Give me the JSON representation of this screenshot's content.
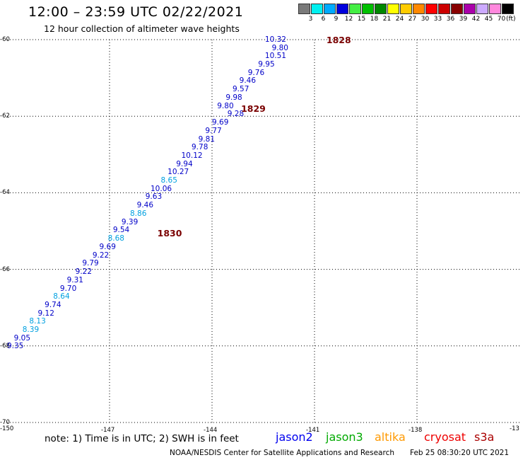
{
  "header": {
    "title": "12:00 – 23:59 UTC 02/22/2021",
    "subtitle": "12 hour collection of altimeter wave heights"
  },
  "legend": {
    "unit": "(ft)",
    "bins": [
      {
        "label": "3",
        "color": "#7a7a7a"
      },
      {
        "label": "6",
        "color": "#00f0f0"
      },
      {
        "label": "9",
        "color": "#00aaff"
      },
      {
        "label": "12",
        "color": "#0000dd"
      },
      {
        "label": "15",
        "color": "#44ee44"
      },
      {
        "label": "18",
        "color": "#00c000"
      },
      {
        "label": "21",
        "color": "#008800"
      },
      {
        "label": "24",
        "color": "#ffff00"
      },
      {
        "label": "27",
        "color": "#ffcc00"
      },
      {
        "label": "30",
        "color": "#ff8800"
      },
      {
        "label": "33",
        "color": "#ff0000"
      },
      {
        "label": "36",
        "color": "#cc0000"
      },
      {
        "label": "39",
        "color": "#880000"
      },
      {
        "label": "42",
        "color": "#aa00aa"
      },
      {
        "label": "45",
        "color": "#ccaaff"
      },
      {
        "label": "70",
        "color": "#ff88dd"
      },
      {
        "label": "",
        "color": "#000000"
      }
    ]
  },
  "map": {
    "lat_ticks": [
      "-60",
      "-62",
      "-64",
      "-66",
      "-68",
      "-70"
    ],
    "lon_ticks": [
      "-150",
      "-147",
      "-144",
      "-141",
      "-138",
      "-13"
    ],
    "lat_range": [
      -70,
      -60
    ],
    "lon_range": [
      -150,
      -135
    ]
  },
  "passes": [
    {
      "label": "1828",
      "lon": -140.65,
      "lat": -60.0
    },
    {
      "label": "1829",
      "lon": -143.15,
      "lat": -61.8
    },
    {
      "label": "1830",
      "lon": -145.6,
      "lat": -65.05
    }
  ],
  "measurements": [
    {
      "value": "10.32",
      "lon": -142.45,
      "lat": -60.0,
      "color": "#0000c8"
    },
    {
      "value": "9.80",
      "lon": -142.25,
      "lat": -60.22,
      "color": "#0000c8"
    },
    {
      "value": "10.51",
      "lon": -142.45,
      "lat": -60.43,
      "color": "#0000c8"
    },
    {
      "value": "9.95",
      "lon": -142.65,
      "lat": -60.65,
      "color": "#0000c8"
    },
    {
      "value": "9.76",
      "lon": -142.95,
      "lat": -60.86,
      "color": "#0000c8"
    },
    {
      "value": "9.46",
      "lon": -143.2,
      "lat": -61.08,
      "color": "#0000c8"
    },
    {
      "value": "9.57",
      "lon": -143.4,
      "lat": -61.3,
      "color": "#0000c8"
    },
    {
      "value": "9.98",
      "lon": -143.6,
      "lat": -61.51,
      "color": "#0000c8"
    },
    {
      "value": "9.80",
      "lon": -143.85,
      "lat": -61.73,
      "color": "#0000c8"
    },
    {
      "value": "9.28",
      "lon": -143.55,
      "lat": -61.95,
      "color": "#0000c8"
    },
    {
      "value": "9.69",
      "lon": -144.0,
      "lat": -62.16,
      "color": "#0000c8"
    },
    {
      "value": "9.77",
      "lon": -144.2,
      "lat": -62.38,
      "color": "#0000c8"
    },
    {
      "value": "9.81",
      "lon": -144.4,
      "lat": -62.6,
      "color": "#0000c8"
    },
    {
      "value": "9.78",
      "lon": -144.6,
      "lat": -62.81,
      "color": "#0000c8"
    },
    {
      "value": "10.12",
      "lon": -144.9,
      "lat": -63.03,
      "color": "#0000c8"
    },
    {
      "value": "9.94",
      "lon": -145.05,
      "lat": -63.25,
      "color": "#0000c8"
    },
    {
      "value": "10.27",
      "lon": -145.3,
      "lat": -63.46,
      "color": "#0000c8"
    },
    {
      "value": "8.65",
      "lon": -145.5,
      "lat": -63.68,
      "color": "#00a0e0"
    },
    {
      "value": "10.06",
      "lon": -145.8,
      "lat": -63.9,
      "color": "#0000c8"
    },
    {
      "value": "9.63",
      "lon": -145.95,
      "lat": -64.11,
      "color": "#0000c8"
    },
    {
      "value": "9.46",
      "lon": -146.2,
      "lat": -64.33,
      "color": "#0000c8"
    },
    {
      "value": "8.86",
      "lon": -146.4,
      "lat": -64.55,
      "color": "#00a0e0"
    },
    {
      "value": "9.39",
      "lon": -146.65,
      "lat": -64.76,
      "color": "#0000c8"
    },
    {
      "value": "9.54",
      "lon": -146.9,
      "lat": -64.98,
      "color": "#0000c8"
    },
    {
      "value": "8.68",
      "lon": -147.05,
      "lat": -65.2,
      "color": "#00a0e0"
    },
    {
      "value": "9.69",
      "lon": -147.3,
      "lat": -65.41,
      "color": "#0000c8"
    },
    {
      "value": "9.22",
      "lon": -147.5,
      "lat": -65.63,
      "color": "#0000c8"
    },
    {
      "value": "9.79",
      "lon": -147.8,
      "lat": -65.85,
      "color": "#0000c8"
    },
    {
      "value": "9.22",
      "lon": -148.0,
      "lat": -66.06,
      "color": "#0000c8"
    },
    {
      "value": "9.31",
      "lon": -148.25,
      "lat": -66.28,
      "color": "#0000c8"
    },
    {
      "value": "9.70",
      "lon": -148.45,
      "lat": -66.5,
      "color": "#0000c8"
    },
    {
      "value": "8.64",
      "lon": -148.65,
      "lat": -66.71,
      "color": "#00a0e0"
    },
    {
      "value": "9.74",
      "lon": -148.9,
      "lat": -66.93,
      "color": "#0000c8"
    },
    {
      "value": "9.12",
      "lon": -149.1,
      "lat": -67.15,
      "color": "#0000c8"
    },
    {
      "value": "8.13",
      "lon": -149.35,
      "lat": -67.36,
      "color": "#00a0e0"
    },
    {
      "value": "8.39",
      "lon": -149.55,
      "lat": -67.58,
      "color": "#00a0e0"
    },
    {
      "value": "9.05",
      "lon": -149.8,
      "lat": -67.8,
      "color": "#0000c8"
    },
    {
      "value": "9.35",
      "lon": -150.0,
      "lat": -68.01,
      "color": "#0000c8"
    }
  ],
  "footer": {
    "note": "note:  1)  Time is in UTC;  2)  SWH is in feet",
    "satellites": [
      {
        "name": "jason2",
        "color": "#0000ee"
      },
      {
        "name": "jason3",
        "color": "#00aa00"
      },
      {
        "name": "altika",
        "color": "#ff9900"
      },
      {
        "name": "cryosat",
        "color": "#ee0000"
      },
      {
        "name": "s3a",
        "color": "#aa0000"
      }
    ],
    "credit": "NOAA/NESDIS Center for Satellite Applications and Research",
    "timestamp": "Feb 25 08:30:20 UTC 2021"
  }
}
